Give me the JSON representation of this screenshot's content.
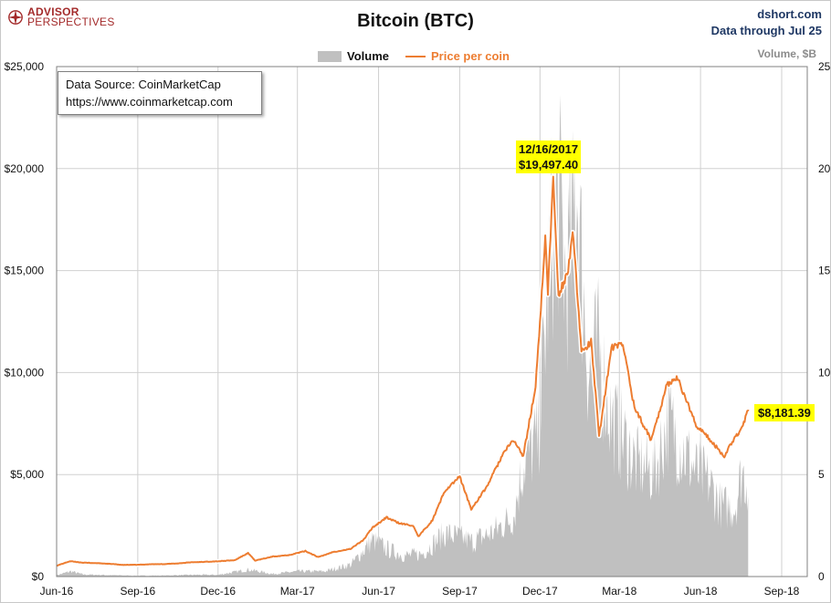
{
  "header": {
    "logo_line1": "ADVISOR",
    "logo_line2": "PERSPECTIVES",
    "source_site": "dshort.com",
    "data_through": "Data through Jul 25"
  },
  "note": {
    "line1": "Data Source: CoinMarketCap",
    "line2": "https://www.coinmarketcap.com"
  },
  "colors": {
    "price": "#ed7d31",
    "volume": "#c0c0c0",
    "brand": "#a32a2a",
    "source_text": "#1f3864",
    "callout": "#ffff00"
  },
  "chart_data": {
    "type": "line",
    "title": "Bitcoin (BTC)",
    "legend": {
      "placement": "top-center",
      "entries": [
        "Volume",
        "Price per coin"
      ]
    },
    "y_right_unit": "Volume, $B",
    "grid": true,
    "ylim": [
      0,
      25000
    ],
    "y2lim": [
      0,
      25
    ],
    "y_ticks": [
      "$0",
      "$5,000",
      "$10,000",
      "$15,000",
      "$20,000",
      "$25,000"
    ],
    "y2_ticks": [
      "0",
      "5",
      "10",
      "15",
      "20",
      "25"
    ],
    "x_ticks": [
      "Jun-16",
      "Sep-16",
      "Dec-16",
      "Mar-17",
      "Jun-17",
      "Sep-17",
      "Dec-17",
      "Mar-18",
      "Jun-18",
      "Sep-18"
    ],
    "x_range": [
      "2016-06-01",
      "2018-09-30"
    ],
    "series": [
      {
        "name": "Price per coin",
        "axis": "left",
        "points": [
          [
            "2016-06-01",
            530
          ],
          [
            "2016-06-16",
            750
          ],
          [
            "2016-07-01",
            680
          ],
          [
            "2016-07-15",
            660
          ],
          [
            "2016-08-01",
            620
          ],
          [
            "2016-08-15",
            570
          ],
          [
            "2016-09-01",
            575
          ],
          [
            "2016-09-15",
            605
          ],
          [
            "2016-10-01",
            610
          ],
          [
            "2016-10-15",
            640
          ],
          [
            "2016-11-01",
            700
          ],
          [
            "2016-11-15",
            720
          ],
          [
            "2016-12-01",
            750
          ],
          [
            "2016-12-20",
            800
          ],
          [
            "2017-01-04",
            1150
          ],
          [
            "2017-01-12",
            780
          ],
          [
            "2017-02-01",
            980
          ],
          [
            "2017-02-20",
            1060
          ],
          [
            "2017-03-10",
            1250
          ],
          [
            "2017-03-25",
            950
          ],
          [
            "2017-04-10",
            1200
          ],
          [
            "2017-04-30",
            1350
          ],
          [
            "2017-05-15",
            1800
          ],
          [
            "2017-05-25",
            2400
          ],
          [
            "2017-06-10",
            2900
          ],
          [
            "2017-06-25",
            2600
          ],
          [
            "2017-07-10",
            2500
          ],
          [
            "2017-07-16",
            1950
          ],
          [
            "2017-08-01",
            2750
          ],
          [
            "2017-08-15",
            4200
          ],
          [
            "2017-09-01",
            4900
          ],
          [
            "2017-09-14",
            3300
          ],
          [
            "2017-10-01",
            4350
          ],
          [
            "2017-10-20",
            6000
          ],
          [
            "2017-11-01",
            6700
          ],
          [
            "2017-11-12",
            5900
          ],
          [
            "2017-11-26",
            9300
          ],
          [
            "2017-12-07",
            16500
          ],
          [
            "2017-12-10",
            14000
          ],
          [
            "2017-12-16",
            19497.4
          ],
          [
            "2017-12-22",
            13800
          ],
          [
            "2018-01-02",
            15000
          ],
          [
            "2018-01-07",
            17000
          ],
          [
            "2018-01-17",
            11000
          ],
          [
            "2018-01-28",
            11500
          ],
          [
            "2018-02-06",
            6900
          ],
          [
            "2018-02-20",
            11200
          ],
          [
            "2018-03-05",
            11400
          ],
          [
            "2018-03-18",
            8300
          ],
          [
            "2018-04-06",
            6700
          ],
          [
            "2018-04-24",
            9400
          ],
          [
            "2018-05-05",
            9800
          ],
          [
            "2018-05-28",
            7350
          ],
          [
            "2018-06-10",
            6800
          ],
          [
            "2018-06-28",
            5900
          ],
          [
            "2018-07-08",
            6700
          ],
          [
            "2018-07-18",
            7300
          ],
          [
            "2018-07-25",
            8181.39
          ]
        ]
      },
      {
        "name": "Volume",
        "axis": "right",
        "points": [
          [
            "2016-06-01",
            0.08
          ],
          [
            "2016-06-17",
            0.3
          ],
          [
            "2016-07-01",
            0.12
          ],
          [
            "2016-08-01",
            0.08
          ],
          [
            "2016-09-01",
            0.05
          ],
          [
            "2016-10-01",
            0.06
          ],
          [
            "2016-11-01",
            0.1
          ],
          [
            "2016-12-01",
            0.1
          ],
          [
            "2017-01-05",
            0.4
          ],
          [
            "2017-02-01",
            0.15
          ],
          [
            "2017-03-01",
            0.3
          ],
          [
            "2017-04-01",
            0.3
          ],
          [
            "2017-05-01",
            0.7
          ],
          [
            "2017-05-25",
            2.1
          ],
          [
            "2017-06-10",
            1.6
          ],
          [
            "2017-07-01",
            1.2
          ],
          [
            "2017-07-20",
            1.3
          ],
          [
            "2017-08-15",
            2.5
          ],
          [
            "2017-09-05",
            2.2
          ],
          [
            "2017-09-15",
            2.0
          ],
          [
            "2017-10-10",
            2.6
          ],
          [
            "2017-11-01",
            3.5
          ],
          [
            "2017-11-12",
            6.5
          ],
          [
            "2017-11-29",
            8.0
          ],
          [
            "2017-12-08",
            15.0
          ],
          [
            "2017-12-15",
            20.0
          ],
          [
            "2017-12-22",
            22.0
          ],
          [
            "2017-12-30",
            17.0
          ],
          [
            "2018-01-08",
            20.0
          ],
          [
            "2018-01-10",
            24.0
          ],
          [
            "2018-01-17",
            18.0
          ],
          [
            "2018-01-25",
            12.0
          ],
          [
            "2018-02-06",
            13.0
          ],
          [
            "2018-02-20",
            9.0
          ],
          [
            "2018-03-05",
            8.0
          ],
          [
            "2018-03-20",
            6.5
          ],
          [
            "2018-04-10",
            6.0
          ],
          [
            "2018-04-25",
            9.0
          ],
          [
            "2018-05-10",
            7.5
          ],
          [
            "2018-05-28",
            6.0
          ],
          [
            "2018-06-10",
            5.5
          ],
          [
            "2018-06-25",
            4.0
          ],
          [
            "2018-07-10",
            4.0
          ],
          [
            "2018-07-18",
            6.0
          ],
          [
            "2018-07-25",
            5.5
          ]
        ]
      }
    ],
    "annotations": [
      {
        "date": "12/16/2017",
        "price": "$19,497.40"
      },
      {
        "price": "$8,181.39"
      }
    ]
  }
}
